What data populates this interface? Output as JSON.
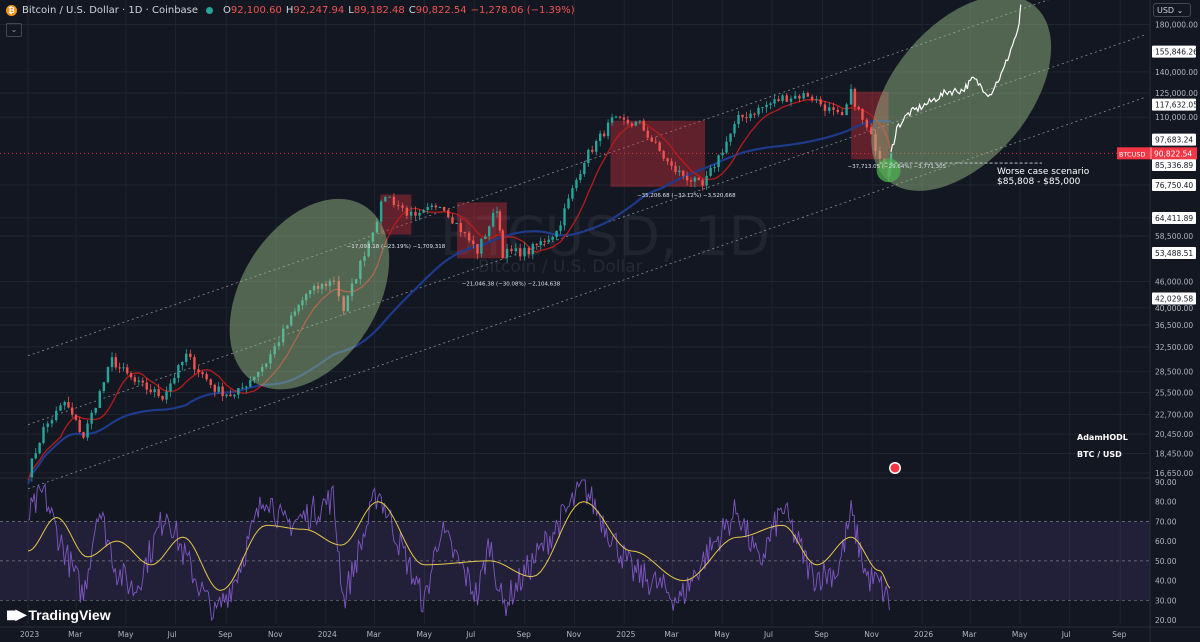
{
  "header": {
    "symbol_title": "Bitcoin / U.S. Dollar · 1D · Coinbase",
    "ohlc": [
      {
        "key": "O",
        "value": "92,100.60"
      },
      {
        "key": "H",
        "value": "92,247.94"
      },
      {
        "key": "L",
        "value": "89,182.48"
      },
      {
        "key": "C",
        "value": "90,822.54"
      }
    ],
    "change": "−1,278.06 (−1.39%)",
    "currency_button": "USD"
  },
  "watermark": {
    "ticker": "BTCUSD, 1D",
    "name": "Bitcoin / U.S. Dollar"
  },
  "branding": {
    "logo_text": "TradingView",
    "author": "AdamHODL",
    "pair": "BTC / USD"
  },
  "colors": {
    "background": "#131722",
    "up": "#26a69a",
    "down": "#ef5350",
    "ma_red": "#b71c1c",
    "ma_blue": "#1e3a8a",
    "highlight_green": "#9fc58c",
    "highlight_red": "#e0323c",
    "projection": "#ffffff",
    "rsi_line": "#7e57c2",
    "rsi_signal": "#e6c84a",
    "price_badge": "#f23645"
  },
  "chart_data": [
    {
      "type": "line",
      "title": "",
      "xlabel": "",
      "ylabel": "",
      "x_tick_labels": [
        "2023",
        "Mar",
        "May",
        "Jul",
        "Sep",
        "Nov",
        "2024",
        "Mar",
        "May",
        "Jul",
        "Sep",
        "Nov",
        "2025",
        "Mar",
        "May",
        "Jul",
        "Sep",
        "Nov",
        "2026",
        "Mar",
        "May",
        "Jul",
        "Sep"
      ],
      "y_scale": "log",
      "y_tick_labels": [
        "180,000.00",
        "140,000.00",
        "125,000.00",
        "110,000.00",
        "76,750.40",
        "64,500.00",
        "58,500.00",
        "46,000.00",
        "40,000.00",
        "36,500.00",
        "32,500.00",
        "28,500.00",
        "25,500.00",
        "22,700.00",
        "20,450.00",
        "18,450.00",
        "16,650.00"
      ],
      "ylim": [
        16200,
        205000
      ],
      "price_labels": [
        {
          "value": 155846.26,
          "label": "155,846.26"
        },
        {
          "value": 117632.05,
          "label": "117,632.05"
        },
        {
          "value": 97683.24,
          "label": "97,683.24"
        },
        {
          "value": 85336.89,
          "label": "85,336.89"
        },
        {
          "value": 76750.4,
          "label": "76,750.40"
        },
        {
          "value": 64411.89,
          "label": "64,411.89"
        },
        {
          "value": 53488.51,
          "label": "53,488.51"
        },
        {
          "value": 42029.58,
          "label": "42,029.58"
        }
      ],
      "current_price": {
        "symbol": "BTCUSD",
        "value": 90822.54,
        "label": "90,822.54"
      },
      "price_path": {
        "dates": [
          "2023-01-01",
          "2023-01-20",
          "2023-02-15",
          "2023-03-10",
          "2023-04-14",
          "2023-05-12",
          "2023-06-15",
          "2023-07-14",
          "2023-08-18",
          "2023-09-11",
          "2023-10-20",
          "2023-11-15",
          "2023-12-08",
          "2024-01-11",
          "2024-01-23",
          "2024-03-14",
          "2024-04-20",
          "2024-05-20",
          "2024-07-05",
          "2024-07-29",
          "2024-08-05",
          "2024-09-06",
          "2024-10-10",
          "2024-11-13",
          "2024-12-17",
          "2025-01-20",
          "2025-02-28",
          "2025-04-07",
          "2025-05-21",
          "2025-07-14",
          "2025-08-14",
          "2025-09-25",
          "2025-10-06",
          "2025-10-20",
          "2025-11-21",
          "2025-11-24"
        ],
        "values": [
          16600,
          21000,
          24200,
          20200,
          30300,
          26900,
          25000,
          31000,
          26000,
          25000,
          30000,
          36500,
          43000,
          46500,
          39500,
          73000,
          64000,
          70000,
          54000,
          68000,
          53500,
          54000,
          60000,
          88000,
          108000,
          106000,
          84000,
          76000,
          109000,
          122000,
          124000,
          109000,
          125000,
          108000,
          82000,
          90822
        ]
      },
      "projection_path": {
        "dates": [
          "2025-11-24",
          "2025-12-01",
          "2025-12-15",
          "2026-01-10",
          "2026-02-01",
          "2026-02-20",
          "2026-03-05",
          "2026-03-25",
          "2026-04-10",
          "2026-04-20",
          "2026-04-30",
          "2026-05-02"
        ],
        "values": [
          90822,
          104000,
          112000,
          119000,
          126000,
          127000,
          135000,
          124000,
          140000,
          158000,
          178000,
          200000
        ]
      },
      "channel_lines": [
        {
          "name": "",
          "start": [
            "2023-01-01",
            15300
          ],
          "end": [
            "2026-09-30",
            122000
          ]
        },
        {
          "name": "",
          "start": [
            "2023-01-01",
            21500
          ],
          "end": [
            "2026-09-30",
            170000
          ]
        },
        {
          "name": "",
          "start": [
            "2023-01-01",
            31000
          ],
          "end": [
            "2026-09-30",
            245000
          ]
        }
      ],
      "highlight_zones": [
        {
          "kind": "green-ellipse",
          "center": [
            "2023-12-12",
            43000
          ]
        },
        {
          "kind": "green-ellipse",
          "center": [
            "2026-02-18",
            125000
          ]
        },
        {
          "kind": "green-circle",
          "center": [
            "2025-11-21",
            83000
          ]
        },
        {
          "kind": "red-box",
          "from": [
            "2024-03-08",
            73000
          ],
          "to": [
            "2024-04-15",
            59000
          ]
        },
        {
          "kind": "red-box",
          "from": [
            "2024-06-10",
            70000
          ],
          "to": [
            "2024-08-10",
            52000
          ]
        },
        {
          "kind": "red-box",
          "from": [
            "2024-12-15",
            108000
          ],
          "to": [
            "2025-04-10",
            76000
          ]
        },
        {
          "kind": "red-box",
          "from": [
            "2025-10-06",
            126000
          ],
          "to": [
            "2025-11-21",
            88000
          ]
        }
      ],
      "annotations": [
        {
          "text": "−17,093.18 (−23.19%) −1,709,318",
          "at": [
            "2024-03-01",
            55000
          ]
        },
        {
          "text": "−21,046.38 (−30.08%) −2,104,638",
          "at": [
            "2024-07-20",
            45000
          ]
        },
        {
          "text": "−35,206.68 (−32.12%) −3,520,668",
          "at": [
            "2025-02-20",
            72000
          ]
        },
        {
          "text": "−37,713.05 (−29.64%) −3,771,305",
          "at": [
            "2025-11-05",
            84000
          ]
        },
        {
          "text": "Worse case scenario",
          "at": [
            "2026-01-25",
            86000
          ]
        },
        {
          "text": "$85,808 - $85,000",
          "at": [
            "2026-01-25",
            82500
          ]
        }
      ]
    },
    {
      "type": "line",
      "title": "",
      "xlabel": "",
      "ylabel": "",
      "y_tick_labels": [
        "90.00",
        "80.00",
        "70.00",
        "60.00",
        "50.00",
        "40.00",
        "30.00",
        "20.00"
      ],
      "ylim": [
        18,
        92
      ],
      "bands": {
        "upper": 70,
        "middle": 50,
        "lower": 30
      },
      "series": [
        {
          "dates": [
            "2023-01-01",
            "2023-01-20",
            "2023-02-05",
            "2023-03-10",
            "2023-03-28",
            "2023-04-20",
            "2023-05-12",
            "2023-06-20",
            "2023-07-10",
            "2023-08-18",
            "2023-09-11",
            "2023-10-20",
            "2023-11-10",
            "2023-12-05",
            "2024-01-10",
            "2024-01-23",
            "2024-03-05",
            "2024-05-01",
            "2024-05-20",
            "2024-07-05",
            "2024-07-20",
            "2024-08-05",
            "2024-09-20",
            "2024-11-12",
            "2024-12-20",
            "2025-01-10",
            "2025-02-10",
            "2025-03-10",
            "2025-04-10",
            "2025-05-20",
            "2025-06-15",
            "2025-07-14",
            "2025-08-20",
            "2025-09-20",
            "2025-10-06",
            "2025-10-25",
            "2025-11-10",
            "2025-11-24"
          ],
          "values": [
            72,
            85,
            65,
            32,
            78,
            45,
            35,
            76,
            54,
            22,
            40,
            85,
            68,
            72,
            82,
            30,
            86,
            28,
            66,
            32,
            60,
            27,
            55,
            88,
            60,
            45,
            38,
            30,
            52,
            76,
            48,
            77,
            42,
            45,
            74,
            42,
            38,
            27
          ]
        },
        {
          "dates": [
            "2023-01-01",
            "2023-02-05",
            "2023-03-15",
            "2023-04-20",
            "2023-06-01",
            "2023-07-10",
            "2023-08-25",
            "2023-10-20",
            "2023-12-05",
            "2024-01-20",
            "2024-03-05",
            "2024-05-01",
            "2024-07-20",
            "2024-09-10",
            "2024-11-12",
            "2025-01-10",
            "2025-03-15",
            "2025-05-20",
            "2025-07-14",
            "2025-08-25",
            "2025-10-06",
            "2025-11-10",
            "2025-11-24"
          ],
          "values": [
            55,
            72,
            52,
            60,
            48,
            62,
            35,
            68,
            66,
            58,
            80,
            48,
            50,
            42,
            80,
            55,
            40,
            62,
            68,
            48,
            62,
            45,
            36
          ]
        }
      ]
    }
  ]
}
